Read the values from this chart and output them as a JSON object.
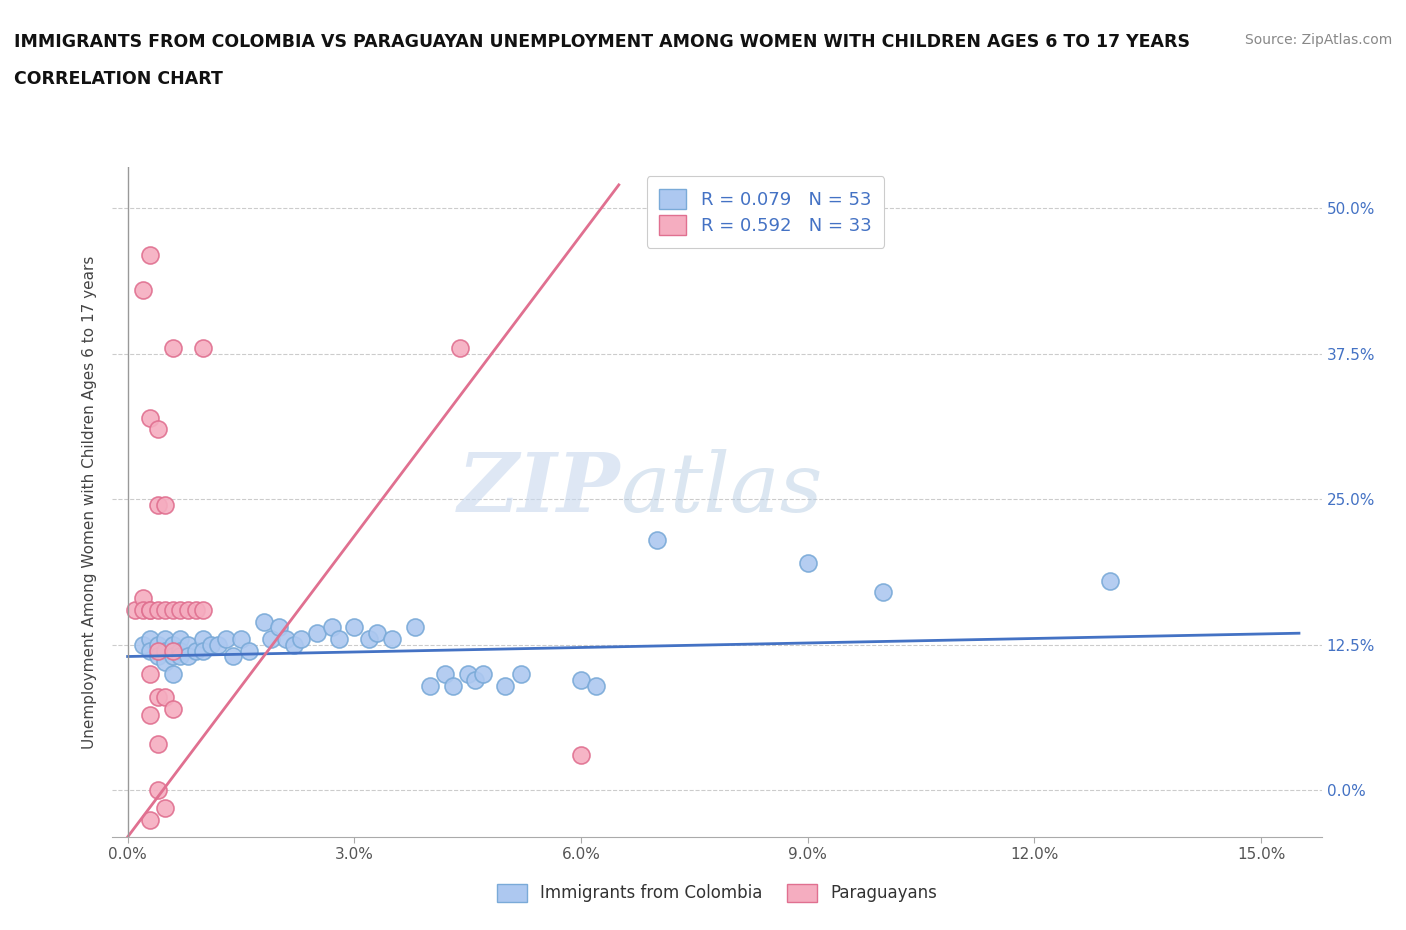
{
  "title_line1": "IMMIGRANTS FROM COLOMBIA VS PARAGUAYAN UNEMPLOYMENT AMONG WOMEN WITH CHILDREN AGES 6 TO 17 YEARS",
  "title_line2": "CORRELATION CHART",
  "source": "Source: ZipAtlas.com",
  "ylabel": "Unemployment Among Women with Children Ages 6 to 17 years",
  "x_tick_labels": [
    "0.0%",
    "3.0%",
    "6.0%",
    "9.0%",
    "12.0%",
    "15.0%"
  ],
  "x_tick_values": [
    0.0,
    0.03,
    0.06,
    0.09,
    0.12,
    0.15
  ],
  "y_tick_labels": [
    "0.0%",
    "12.5%",
    "25.0%",
    "37.5%",
    "50.0%"
  ],
  "y_tick_values": [
    0.0,
    0.125,
    0.25,
    0.375,
    0.5
  ],
  "xlim": [
    -0.002,
    0.158
  ],
  "ylim": [
    -0.04,
    0.535
  ],
  "colombia_color": "#adc8f0",
  "colombia_edge_color": "#7aaad8",
  "paraguay_color": "#f5adc0",
  "paraguay_edge_color": "#e07090",
  "colombia_R": 0.079,
  "colombia_N": 53,
  "paraguay_R": 0.592,
  "paraguay_N": 33,
  "legend_label_colombia": "Immigrants from Colombia",
  "legend_label_paraguay": "Paraguayans",
  "trend_colombia_color": "#4472c4",
  "trend_paraguay_color": "#e07090",
  "watermark_zip": "ZIP",
  "watermark_atlas": "atlas",
  "colombia_trend_x": [
    0.0,
    0.155
  ],
  "colombia_trend_y": [
    0.115,
    0.135
  ],
  "paraguay_trend_x": [
    0.0,
    0.065
  ],
  "paraguay_trend_y": [
    -0.04,
    0.52
  ],
  "colombia_points": [
    [
      0.002,
      0.125
    ],
    [
      0.003,
      0.13
    ],
    [
      0.003,
      0.12
    ],
    [
      0.004,
      0.125
    ],
    [
      0.004,
      0.115
    ],
    [
      0.005,
      0.13
    ],
    [
      0.005,
      0.12
    ],
    [
      0.005,
      0.11
    ],
    [
      0.006,
      0.125
    ],
    [
      0.006,
      0.115
    ],
    [
      0.006,
      0.1
    ],
    [
      0.007,
      0.13
    ],
    [
      0.007,
      0.12
    ],
    [
      0.007,
      0.115
    ],
    [
      0.008,
      0.125
    ],
    [
      0.008,
      0.115
    ],
    [
      0.009,
      0.12
    ],
    [
      0.01,
      0.13
    ],
    [
      0.01,
      0.12
    ],
    [
      0.011,
      0.125
    ],
    [
      0.012,
      0.125
    ],
    [
      0.013,
      0.13
    ],
    [
      0.014,
      0.115
    ],
    [
      0.015,
      0.13
    ],
    [
      0.016,
      0.12
    ],
    [
      0.018,
      0.145
    ],
    [
      0.019,
      0.13
    ],
    [
      0.02,
      0.14
    ],
    [
      0.021,
      0.13
    ],
    [
      0.022,
      0.125
    ],
    [
      0.023,
      0.13
    ],
    [
      0.025,
      0.135
    ],
    [
      0.027,
      0.14
    ],
    [
      0.028,
      0.13
    ],
    [
      0.03,
      0.14
    ],
    [
      0.032,
      0.13
    ],
    [
      0.033,
      0.135
    ],
    [
      0.035,
      0.13
    ],
    [
      0.038,
      0.14
    ],
    [
      0.04,
      0.09
    ],
    [
      0.042,
      0.1
    ],
    [
      0.043,
      0.09
    ],
    [
      0.045,
      0.1
    ],
    [
      0.046,
      0.095
    ],
    [
      0.047,
      0.1
    ],
    [
      0.05,
      0.09
    ],
    [
      0.052,
      0.1
    ],
    [
      0.06,
      0.095
    ],
    [
      0.062,
      0.09
    ],
    [
      0.07,
      0.215
    ],
    [
      0.09,
      0.195
    ],
    [
      0.1,
      0.17
    ],
    [
      0.13,
      0.18
    ]
  ],
  "paraguay_points": [
    [
      0.001,
      0.155
    ],
    [
      0.002,
      0.165
    ],
    [
      0.002,
      0.155
    ],
    [
      0.002,
      0.43
    ],
    [
      0.003,
      0.46
    ],
    [
      0.003,
      0.32
    ],
    [
      0.003,
      0.155
    ],
    [
      0.003,
      0.1
    ],
    [
      0.003,
      0.065
    ],
    [
      0.003,
      0.155
    ],
    [
      0.004,
      0.31
    ],
    [
      0.004,
      0.245
    ],
    [
      0.004,
      0.155
    ],
    [
      0.004,
      0.12
    ],
    [
      0.004,
      0.08
    ],
    [
      0.004,
      0.04
    ],
    [
      0.004,
      0.0
    ],
    [
      0.005,
      0.155
    ],
    [
      0.005,
      0.08
    ],
    [
      0.005,
      -0.015
    ],
    [
      0.005,
      0.245
    ],
    [
      0.006,
      0.155
    ],
    [
      0.006,
      0.38
    ],
    [
      0.006,
      0.12
    ],
    [
      0.006,
      0.07
    ],
    [
      0.007,
      0.155
    ],
    [
      0.008,
      0.155
    ],
    [
      0.009,
      0.155
    ],
    [
      0.01,
      0.155
    ],
    [
      0.01,
      0.38
    ],
    [
      0.044,
      0.38
    ],
    [
      0.06,
      0.03
    ],
    [
      0.003,
      -0.025
    ]
  ]
}
